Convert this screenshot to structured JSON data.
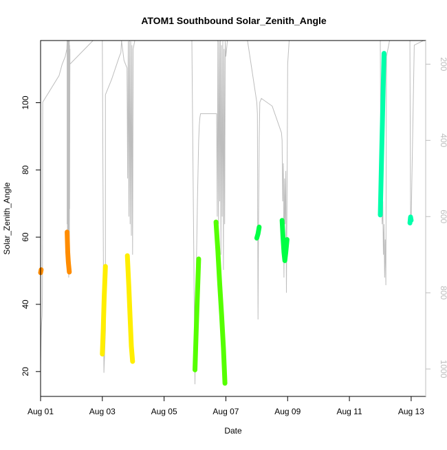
{
  "chart_data": {
    "type": "scatter",
    "title": "ATOM1 Southbound Solar_Zenith_Angle",
    "xlabel": "Date",
    "ylabel": "Solar_Zenith_Angle",
    "xlim": [
      0.0,
      12.47
    ],
    "ylim": [
      12.6,
      118.5
    ],
    "y2lim": [
      1072,
      138
    ],
    "x_ticks": [
      {
        "value": 0,
        "label": "Aug 01"
      },
      {
        "value": 2,
        "label": "Aug 03"
      },
      {
        "value": 4,
        "label": "Aug 05"
      },
      {
        "value": 6,
        "label": "Aug 07"
      },
      {
        "value": 8,
        "label": "Aug 09"
      },
      {
        "value": 10,
        "label": "Aug 11"
      },
      {
        "value": 12,
        "label": "Aug 13"
      }
    ],
    "y_ticks": [
      20,
      40,
      60,
      80,
      100
    ],
    "y2_ticks": [
      200,
      400,
      600,
      800,
      1000
    ],
    "grid": false,
    "colors": {
      "axis": "#000000",
      "secondary_axis": "#bdbdbd",
      "altitude_trace": "#bdbdbd"
    },
    "series": [
      {
        "color": "#ff8c00",
        "segments": [
          {
            "x": [
              0.0,
              0.02
            ],
            "y": [
              49.4,
              50.3
            ]
          },
          {
            "x": [
              0.86,
              0.88,
              0.9,
              0.93
            ],
            "y": [
              61.5,
              55.5,
              52.5,
              49.6
            ]
          }
        ]
      },
      {
        "color": "#ffbf00",
        "segments": []
      },
      {
        "color": "#ffee00",
        "segments": [
          {
            "x": [
              2.0,
              2.03,
              2.06,
              2.1
            ],
            "y": [
              25.2,
              33.0,
              42.0,
              51.3
            ]
          },
          {
            "x": [
              2.81,
              2.86,
              2.9,
              2.94,
              2.98
            ],
            "y": [
              54.5,
              45.0,
              36.0,
              27.5,
              23.0
            ]
          }
        ]
      },
      {
        "color": "#55ff00",
        "segments": [
          {
            "x": [
              5.0,
              5.04,
              5.08,
              5.12
            ],
            "y": [
              20.5,
              32.0,
              43.0,
              53.5
            ]
          },
          {
            "x": [
              5.68,
              5.74,
              5.8,
              5.86,
              5.92,
              5.97
            ],
            "y": [
              64.5,
              56.0,
              46.0,
              37.0,
              27.0,
              16.5
            ]
          }
        ]
      },
      {
        "color": "#00ff44",
        "segments": [
          {
            "x": [
              7.0,
              7.04,
              7.08
            ],
            "y": [
              59.7,
              61.0,
              63.0
            ]
          },
          {
            "x": [
              7.82,
              7.85,
              7.88,
              7.91,
              7.94,
              7.98
            ],
            "y": [
              65.0,
              60.0,
              55.5,
              53.0,
              55.5,
              59.3
            ]
          }
        ]
      },
      {
        "color": "#00ffaa",
        "segments": [
          {
            "x": [
              11.0,
              11.04,
              11.08,
              11.12
            ],
            "y": [
              66.6,
              83.0,
              99.0,
              114.7
            ]
          },
          {
            "x": [
              11.96,
              11.98,
              12.0
            ],
            "y": [
              64.2,
              66.0,
              65.0
            ]
          }
        ]
      }
    ],
    "altitude_trace": {
      "x": [
        0.0,
        0.0,
        0.02,
        0.04,
        0.05,
        0.06,
        0.07,
        0.6,
        0.7,
        0.8,
        0.85,
        0.86,
        0.86,
        0.86,
        0.86,
        0.87,
        0.87,
        0.88,
        0.88,
        0.89,
        0.89,
        0.9,
        0.9,
        0.91,
        0.91,
        0.92,
        0.92,
        0.93,
        0.93,
        0.94,
        0.94,
        0.95,
        0.95,
        1.7,
        2.0,
        2.05,
        2.1,
        2.1,
        2.3,
        2.55,
        2.6,
        2.62,
        2.7,
        2.75,
        2.8,
        2.82,
        2.84,
        2.86,
        2.88,
        2.9,
        2.92,
        2.94,
        2.96,
        2.98,
        3.0,
        3.05,
        3.5,
        4.0,
        4.9,
        5.0,
        5.02,
        5.04,
        5.06,
        5.08,
        5.1,
        5.12,
        5.14,
        5.16,
        5.18,
        5.2,
        5.25,
        5.6,
        5.65,
        5.7,
        5.72,
        5.74,
        5.76,
        5.78,
        5.8,
        5.82,
        5.84,
        5.86,
        5.88,
        5.9,
        5.92,
        5.94,
        5.96,
        5.98,
        6.0,
        6.05,
        6.7,
        7.0,
        7.02,
        7.04,
        7.06,
        7.08,
        7.1,
        7.15,
        7.5,
        7.8,
        7.82,
        7.84,
        7.86,
        7.88,
        7.9,
        7.92,
        7.94,
        7.96,
        7.98,
        8.0,
        8.05,
        10.6,
        10.9,
        11.0,
        11.02,
        11.04,
        11.06,
        11.08,
        11.1,
        11.12,
        11.14,
        11.16,
        11.18,
        11.2,
        11.3,
        11.6,
        11.96,
        11.96,
        11.98,
        12.0,
        12.0,
        12.1,
        12.4
      ],
      "altitude": [
        1020,
        990,
        900,
        870,
        860,
        800,
        300,
        230,
        200,
        180,
        160,
        110,
        600,
        150,
        620,
        140,
        700,
        130,
        650,
        120,
        750,
        125,
        580,
        130,
        760,
        140,
        620,
        135,
        740,
        150,
        580,
        160,
        200,
        130,
        110,
        1010,
        900,
        280,
        240,
        180,
        170,
        130,
        190,
        200,
        210,
        500,
        140,
        600,
        130,
        620,
        140,
        650,
        150,
        700,
        160,
        120,
        110,
        100,
        90,
        1040,
        900,
        760,
        660,
        560,
        480,
        400,
        360,
        340,
        330,
        330,
        330,
        330,
        330,
        330,
        600,
        130,
        620,
        140,
        560,
        130,
        700,
        150,
        600,
        140,
        740,
        160,
        620,
        140,
        180,
        120,
        110,
        300,
        330,
        870,
        600,
        400,
        300,
        290,
        310,
        380,
        400,
        560,
        460,
        760,
        500,
        620,
        480,
        800,
        540,
        200,
        130,
        110,
        100,
        90,
        580,
        500,
        620,
        560,
        700,
        620,
        760,
        660,
        780,
        180,
        120,
        90,
        110,
        160,
        590,
        610,
        610,
        150,
        120,
        90
      ]
    }
  }
}
